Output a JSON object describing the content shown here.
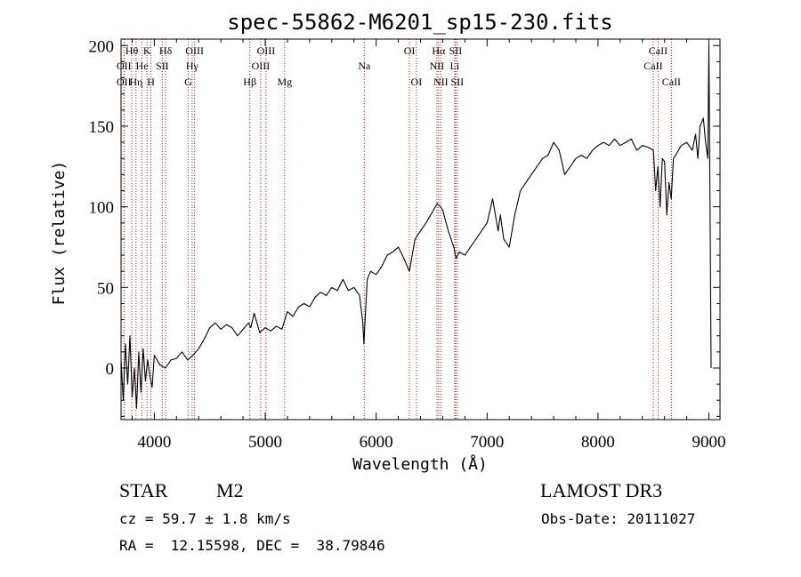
{
  "chart_data": {
    "type": "line",
    "title": "spec-55862-M6201_sp15-230.fits",
    "xlabel": "Wavelength (Å)",
    "ylabel": "Flux (relative)",
    "xlim": [
      3700,
      9100
    ],
    "ylim": [
      -32,
      204
    ],
    "x_ticks": [
      4000,
      5000,
      6000,
      7000,
      8000,
      9000
    ],
    "y_ticks": [
      0,
      50,
      100,
      150,
      200
    ],
    "series": [
      {
        "name": "spectrum",
        "x": [
          3700,
          3720,
          3740,
          3760,
          3780,
          3800,
          3820,
          3840,
          3860,
          3880,
          3900,
          3920,
          3940,
          3960,
          3980,
          4000,
          4050,
          4100,
          4150,
          4200,
          4250,
          4300,
          4350,
          4400,
          4450,
          4500,
          4550,
          4600,
          4650,
          4700,
          4750,
          4800,
          4850,
          4870,
          4900,
          4950,
          5000,
          5050,
          5100,
          5150,
          5200,
          5250,
          5300,
          5350,
          5400,
          5450,
          5500,
          5550,
          5600,
          5650,
          5700,
          5750,
          5800,
          5850,
          5880,
          5890,
          5900,
          5920,
          5950,
          6000,
          6050,
          6100,
          6150,
          6200,
          6250,
          6300,
          6350,
          6400,
          6450,
          6500,
          6550,
          6580,
          6600,
          6650,
          6700,
          6720,
          6750,
          6800,
          6850,
          6900,
          6950,
          7000,
          7050,
          7100,
          7120,
          7150,
          7200,
          7250,
          7300,
          7350,
          7400,
          7450,
          7500,
          7550,
          7600,
          7650,
          7700,
          7750,
          7800,
          7850,
          7900,
          7950,
          8000,
          8050,
          8100,
          8150,
          8200,
          8250,
          8300,
          8350,
          8400,
          8450,
          8500,
          8520,
          8540,
          8560,
          8580,
          8600,
          8620,
          8640,
          8660,
          8680,
          8700,
          8750,
          8800,
          8850,
          8880,
          8900,
          8920,
          8950,
          8970,
          8990,
          9000,
          9010,
          9020
        ],
        "y": [
          5,
          -20,
          15,
          -10,
          20,
          -18,
          0,
          -25,
          10,
          -15,
          12,
          -8,
          5,
          -5,
          -12,
          8,
          2,
          0,
          5,
          6,
          10,
          5,
          8,
          12,
          18,
          25,
          28,
          24,
          27,
          25,
          20,
          24,
          28,
          25,
          34,
          22,
          25,
          23,
          26,
          24,
          35,
          32,
          38,
          40,
          38,
          44,
          47,
          45,
          50,
          48,
          55,
          48,
          50,
          45,
          28,
          15,
          30,
          55,
          60,
          58,
          63,
          70,
          72,
          75,
          68,
          60,
          80,
          85,
          90,
          96,
          102,
          100,
          98,
          85,
          75,
          68,
          72,
          70,
          75,
          80,
          85,
          90,
          105,
          85,
          95,
          80,
          75,
          95,
          110,
          115,
          120,
          125,
          130,
          132,
          140,
          135,
          120,
          125,
          130,
          132,
          130,
          135,
          138,
          140,
          138,
          142,
          138,
          140,
          142,
          135,
          138,
          137,
          135,
          110,
          125,
          100,
          130,
          128,
          95,
          115,
          105,
          130,
          132,
          138,
          140,
          135,
          145,
          130,
          150,
          155,
          140,
          130,
          200,
          100,
          0
        ]
      }
    ],
    "line_markers": [
      {
        "label": "Hθ",
        "x": 3797,
        "row": 1
      },
      {
        "label": "OII",
        "x": 3727,
        "row": 2
      },
      {
        "label": "OII",
        "x": 3727,
        "row": 3
      },
      {
        "label": "He",
        "x": 3889,
        "row": 2
      },
      {
        "label": "Hη",
        "x": 3835,
        "row": 3
      },
      {
        "label": "K",
        "x": 3934,
        "row": 1
      },
      {
        "label": "H",
        "x": 3969,
        "row": 3
      },
      {
        "label": "SII",
        "x": 4072,
        "row": 2
      },
      {
        "label": "Hδ",
        "x": 4102,
        "row": 1
      },
      {
        "label": "OIII",
        "x": 4363,
        "row": 1
      },
      {
        "label": "Hγ",
        "x": 4341,
        "row": 2
      },
      {
        "label": "G",
        "x": 4305,
        "row": 3
      },
      {
        "label": "Hβ",
        "x": 4861,
        "row": 3
      },
      {
        "label": "OIII",
        "x": 5007,
        "row": 1
      },
      {
        "label": "OIII",
        "x": 4959,
        "row": 2
      },
      {
        "label": "Mg",
        "x": 5175,
        "row": 3
      },
      {
        "label": "Na",
        "x": 5893,
        "row": 2
      },
      {
        "label": "OI",
        "x": 6300,
        "row": 1
      },
      {
        "label": "OI",
        "x": 6363,
        "row": 3
      },
      {
        "label": "Hα",
        "x": 6563,
        "row": 1
      },
      {
        "label": "NII",
        "x": 6548,
        "row": 2
      },
      {
        "label": "NII",
        "x": 6583,
        "row": 3
      },
      {
        "label": "SII",
        "x": 6716,
        "row": 1
      },
      {
        "label": "Li",
        "x": 6708,
        "row": 2
      },
      {
        "label": "SII",
        "x": 6731,
        "row": 3
      },
      {
        "label": "CaII",
        "x": 8542,
        "row": 1
      },
      {
        "label": "CaII",
        "x": 8498,
        "row": 2
      },
      {
        "label": "CaII",
        "x": 8662,
        "row": 3
      }
    ]
  },
  "info": {
    "object_class": "STAR",
    "subclass": "M2",
    "survey": "LAMOST DR3",
    "redshift": "cz = 59.7 ± 1.8 km/s",
    "obs_date": "Obs-Date: 20111027",
    "coords": "RA =  12.15598, DEC =  38.79846"
  },
  "colors": {
    "spectrum": "#000000",
    "markers": "#b01010",
    "axes": "#000000"
  }
}
